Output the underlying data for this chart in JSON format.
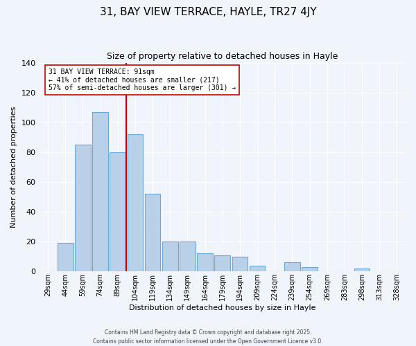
{
  "title": "31, BAY VIEW TERRACE, HAYLE, TR27 4JY",
  "subtitle": "Size of property relative to detached houses in Hayle",
  "xlabel": "Distribution of detached houses by size in Hayle",
  "ylabel": "Number of detached properties",
  "bar_labels": [
    "29sqm",
    "44sqm",
    "59sqm",
    "74sqm",
    "89sqm",
    "104sqm",
    "119sqm",
    "134sqm",
    "149sqm",
    "164sqm",
    "179sqm",
    "194sqm",
    "209sqm",
    "224sqm",
    "239sqm",
    "254sqm",
    "269sqm",
    "283sqm",
    "298sqm",
    "313sqm",
    "328sqm"
  ],
  "bar_values": [
    0,
    19,
    85,
    107,
    80,
    92,
    52,
    20,
    20,
    12,
    11,
    10,
    4,
    0,
    6,
    3,
    0,
    0,
    2,
    0,
    0
  ],
  "bar_color": "#b8d0e8",
  "bar_edgecolor": "#6aaad4",
  "ylim": [
    0,
    140
  ],
  "yticks": [
    0,
    20,
    40,
    60,
    80,
    100,
    120,
    140
  ],
  "vline_x": 4.5,
  "vline_color": "#cc0000",
  "annotation_title": "31 BAY VIEW TERRACE: 91sqm",
  "annotation_line2": "← 41% of detached houses are smaller (217)",
  "annotation_line3": "57% of semi-detached houses are larger (301) →",
  "annotation_box_facecolor": "#ffffff",
  "annotation_box_edgecolor": "#cc0000",
  "footer1": "Contains HM Land Registry data © Crown copyright and database right 2025.",
  "footer2": "Contains public sector information licensed under the Open Government Licence v3.0.",
  "background_color": "#f0f4fb"
}
